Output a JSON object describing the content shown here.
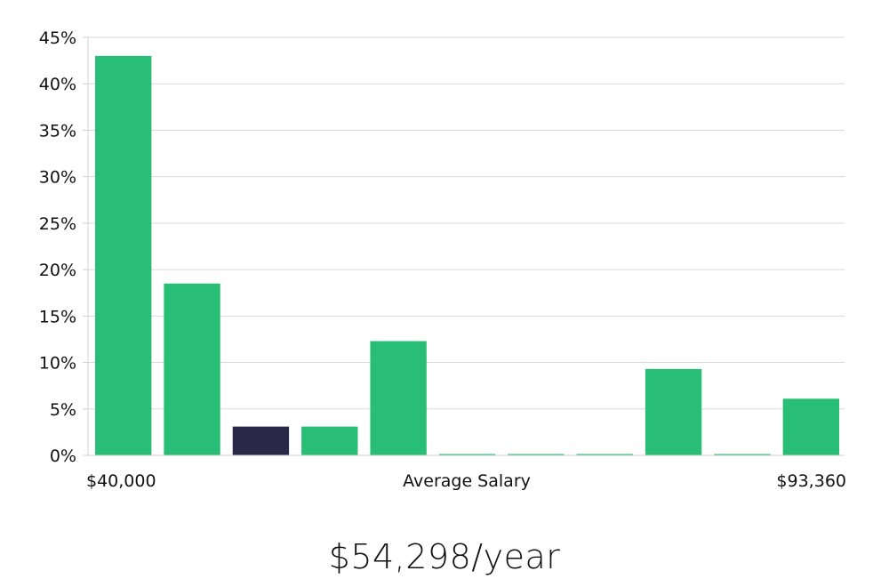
{
  "chart_data": {
    "type": "bar",
    "title": "",
    "xlabel": "Average Salary",
    "ylabel": "",
    "x_min_label": "$40,000",
    "x_max_label": "$93,360",
    "ylim": [
      0,
      45
    ],
    "y_ticks": [
      0,
      5,
      10,
      15,
      20,
      25,
      30,
      35,
      40,
      45
    ],
    "y_tick_suffix": "%",
    "values": [
      43,
      18.5,
      3.1,
      3.1,
      12.3,
      0.1,
      0.1,
      0.1,
      9.3,
      0.1,
      6.1
    ],
    "highlight_index": 2,
    "bar_color": "#29be76",
    "highlight_color": "#2b2748",
    "grid": true
  },
  "summary": {
    "salary": "$54,298/year"
  }
}
